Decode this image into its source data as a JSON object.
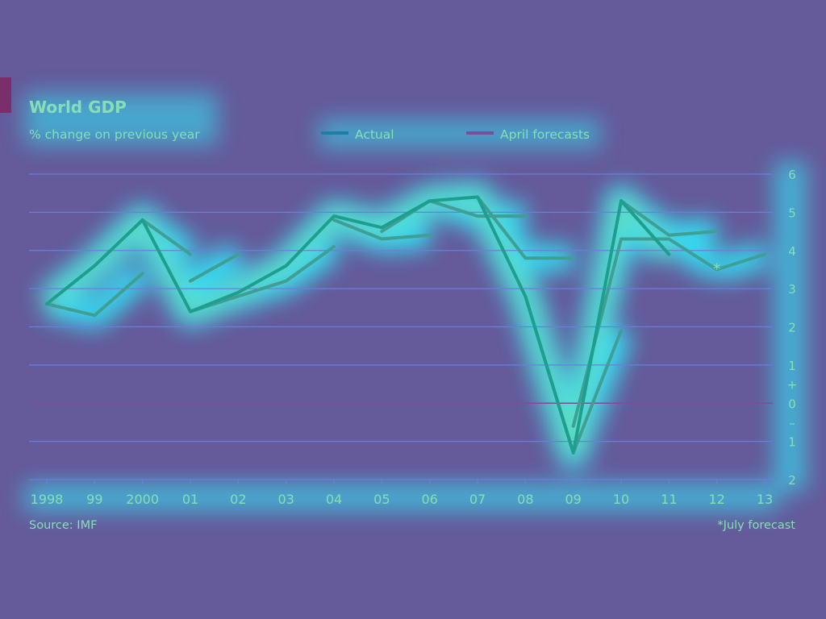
{
  "colors": {
    "background": "#655a9a",
    "glow": "#2ff0ff",
    "gridline": "#6b7ee0",
    "zero_line": "#7a4f9a",
    "text": "#86dfb4",
    "actual": "#1e9e8c",
    "forecast": "#3f9f94",
    "accent_bar": "#7a2f6a"
  },
  "chart_data": {
    "type": "line",
    "title": "World GDP",
    "subtitle": "% change on previous year",
    "legend": {
      "placement": "top",
      "items": [
        "Actual",
        "April forecasts"
      ]
    },
    "x_labels": [
      "1998",
      "99",
      "2000",
      "01",
      "02",
      "03",
      "04",
      "05",
      "06",
      "07",
      "08",
      "09",
      "10",
      "11",
      "12",
      "13"
    ],
    "y_axis": {
      "ticks": [
        6,
        5,
        4,
        3,
        2,
        1,
        0,
        -1,
        -2
      ],
      "tick_labels": [
        "6",
        "5",
        "4",
        "3",
        "2",
        "1",
        "0",
        "1",
        "2"
      ],
      "sign_markers": [
        "+",
        "–"
      ],
      "ylim": [
        -2,
        6
      ],
      "side": "right",
      "grid": true
    },
    "series": [
      {
        "name": "Actual",
        "x": [
          1998,
          1999,
          2000,
          2001,
          2002,
          2003,
          2004,
          2005,
          2006,
          2007,
          2008,
          2009,
          2010,
          2011
        ],
        "values": [
          2.6,
          3.6,
          4.8,
          2.4,
          2.9,
          3.6,
          4.9,
          4.6,
          5.3,
          5.4,
          2.8,
          -1.3,
          5.3,
          3.9
        ]
      },
      {
        "name": "April forecasts",
        "segments": [
          {
            "x": [
              1998,
              1999,
              2000
            ],
            "values": [
              2.6,
              2.3,
              3.4
            ]
          },
          {
            "x": [
              2000,
              2001
            ],
            "values": [
              4.8,
              3.9
            ]
          },
          {
            "x": [
              2001,
              2002
            ],
            "values": [
              3.2,
              3.9
            ]
          },
          {
            "x": [
              2001,
              2002,
              2003,
              2004
            ],
            "values": [
              2.4,
              2.8,
              3.2,
              4.1
            ]
          },
          {
            "x": [
              2004,
              2005,
              2006
            ],
            "values": [
              4.8,
              4.3,
              4.4
            ]
          },
          {
            "x": [
              2005,
              2006,
              2007,
              2008
            ],
            "values": [
              4.5,
              5.3,
              4.9,
              4.9
            ]
          },
          {
            "x": [
              2007,
              2008,
              2009
            ],
            "values": [
              5.4,
              3.8,
              3.8
            ]
          },
          {
            "x": [
              2008,
              2009,
              2010
            ],
            "values": [
              2.8,
              -1.3,
              1.9
            ]
          },
          {
            "x": [
              2009,
              2010,
              2011,
              2012
            ],
            "values": [
              -0.6,
              4.3,
              4.3,
              3.5
            ]
          },
          {
            "x": [
              2010,
              2011,
              2012
            ],
            "values": [
              5.3,
              4.4,
              4.5
            ]
          },
          {
            "x": [
              2012,
              2013
            ],
            "values": [
              3.5,
              3.9
            ]
          }
        ]
      }
    ],
    "annotations": [
      {
        "x": 2012,
        "y": 3.6,
        "text": "*"
      }
    ],
    "source": "Source: IMF",
    "note": "*July forecast"
  }
}
